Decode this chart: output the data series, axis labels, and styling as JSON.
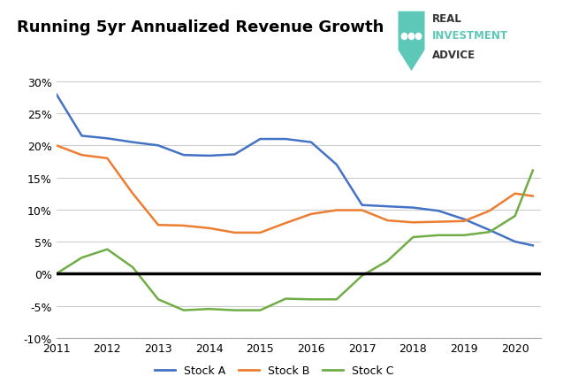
{
  "title": "Running 5yr Annualized Revenue Growth",
  "years": [
    2011,
    2011.5,
    2012,
    2012.5,
    2013,
    2013.5,
    2014,
    2014.5,
    2015,
    2015.5,
    2016,
    2016.5,
    2017,
    2017.5,
    2018,
    2018.5,
    2019,
    2019.5,
    2020,
    2020.35
  ],
  "stock_a": [
    0.28,
    0.215,
    0.211,
    0.205,
    0.2,
    0.185,
    0.184,
    0.186,
    0.21,
    0.21,
    0.205,
    0.17,
    0.107,
    0.105,
    0.103,
    0.098,
    0.085,
    0.068,
    0.05,
    0.044
  ],
  "stock_b": [
    0.2,
    0.185,
    0.18,
    0.125,
    0.076,
    0.075,
    0.071,
    0.064,
    0.064,
    0.079,
    0.093,
    0.099,
    0.099,
    0.083,
    0.08,
    0.081,
    0.082,
    0.098,
    0.125,
    0.121
  ],
  "stock_c": [
    0.0,
    0.025,
    0.038,
    0.01,
    -0.04,
    -0.057,
    -0.055,
    -0.057,
    -0.057,
    -0.039,
    -0.04,
    -0.04,
    -0.003,
    0.02,
    0.057,
    0.06,
    0.06,
    0.065,
    0.09,
    0.161
  ],
  "color_a": "#4472C4",
  "color_b": "#ED7D31",
  "color_c": "#70AD47",
  "xlim": [
    2011,
    2020.5
  ],
  "ylim": [
    -0.1,
    0.32
  ],
  "yticks": [
    -0.1,
    -0.05,
    0.0,
    0.05,
    0.1,
    0.15,
    0.2,
    0.25,
    0.3
  ],
  "xticks": [
    2011,
    2012,
    2013,
    2014,
    2015,
    2016,
    2017,
    2018,
    2019,
    2020
  ],
  "background_color": "#FFFFFF",
  "grid_color": "#CCCCCC",
  "shield_color": "#5DC8B8",
  "logo_text_line1": "REAL",
  "logo_text_line2": "INVESTMENT",
  "logo_text_line3": "ADVICE",
  "logo_text_color1": "#333333",
  "logo_text_color2": "#5DC8B8",
  "logo_text_color3": "#333333"
}
